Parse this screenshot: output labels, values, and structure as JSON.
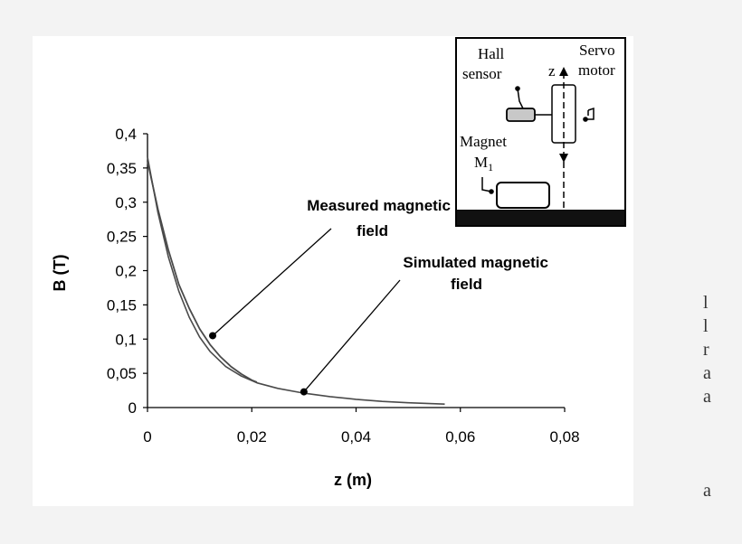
{
  "chart_data": {
    "type": "line",
    "title": "",
    "xlabel": "z (m)",
    "ylabel": "B (T)",
    "xlim": [
      0,
      0.08
    ],
    "ylim": [
      0,
      0.4
    ],
    "x_ticks": [
      "0",
      "0,02",
      "0,04",
      "0,06",
      "0,08"
    ],
    "y_ticks": [
      "0",
      "0,05",
      "0,1",
      "0,15",
      "0,2",
      "0,25",
      "0,3",
      "0,35",
      "0,4"
    ],
    "grid": false,
    "series": [
      {
        "name": "Measured magnetic field",
        "x": [
          0,
          0.002,
          0.004,
          0.006,
          0.008,
          0.01,
          0.012,
          0.014,
          0.016,
          0.018,
          0.02,
          0.021
        ],
        "y": [
          0.36,
          0.29,
          0.23,
          0.18,
          0.145,
          0.115,
          0.092,
          0.074,
          0.06,
          0.049,
          0.04,
          0.037
        ]
      },
      {
        "name": "Simulated magnetic field",
        "x": [
          0,
          0.002,
          0.004,
          0.006,
          0.008,
          0.01,
          0.012,
          0.015,
          0.018,
          0.021,
          0.025,
          0.03,
          0.035,
          0.04,
          0.045,
          0.05,
          0.057
        ],
        "y": [
          0.366,
          0.285,
          0.22,
          0.17,
          0.132,
          0.103,
          0.082,
          0.06,
          0.046,
          0.036,
          0.028,
          0.021,
          0.016,
          0.012,
          0.009,
          0.007,
          0.005
        ]
      }
    ],
    "annotations": [
      {
        "line1": "Measured magnetic",
        "line2": "field",
        "point": [
          0.0125,
          0.105
        ]
      },
      {
        "line1": "Simulated magnetic",
        "line2": "field",
        "point": [
          0.03,
          0.023
        ]
      }
    ]
  },
  "inset": {
    "hall_line1": "Hall",
    "hall_line2": "sensor",
    "servo_line1": "Servo",
    "servo_line2": "motor",
    "z_label": "z",
    "magnet_line1": "Magnet",
    "magnet_line2": "M",
    "magnet_subscript": "1"
  },
  "side_text": [
    "l",
    "l",
    "r",
    "a",
    "a",
    "",
    "",
    "",
    "a"
  ],
  "colors": {
    "line": "#4a4a4a",
    "background": "#f3f3f3",
    "sensor_fill": "#c8c8c8"
  }
}
